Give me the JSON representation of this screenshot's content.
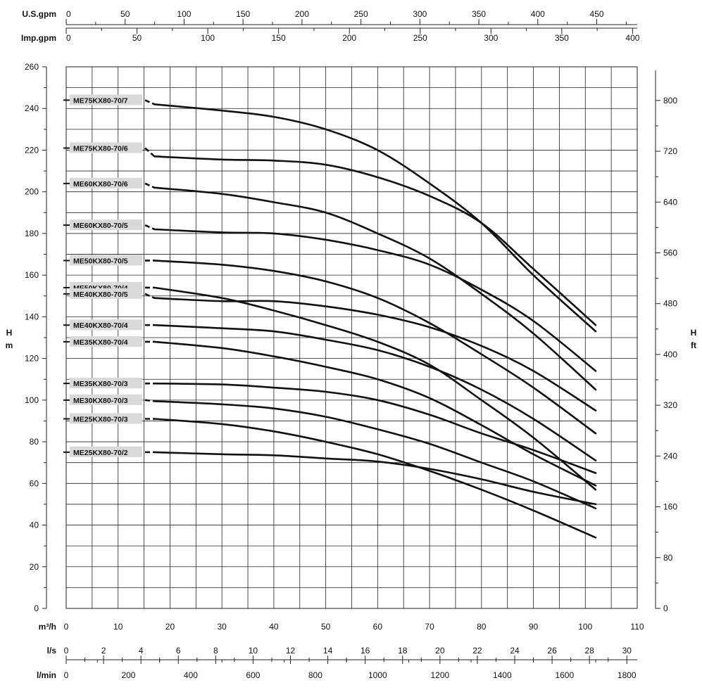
{
  "chart_data": {
    "type": "line",
    "xlabel": "m³/h",
    "ylabel_left": "H m",
    "ylabel_right": "H ft",
    "xlim": [
      0,
      110
    ],
    "ylim": [
      0,
      260
    ],
    "grid": true,
    "axes": {
      "top1": {
        "label": "U.S.gpm",
        "ticks": [
          "0",
          "50",
          "100",
          "150",
          "200",
          "250",
          "300",
          "350",
          "400",
          "450"
        ],
        "values": [
          0,
          50,
          100,
          150,
          200,
          250,
          300,
          350,
          400,
          450
        ]
      },
      "top2": {
        "label": "Imp.gpm",
        "ticks": [
          "0",
          "50",
          "100",
          "150",
          "200",
          "250",
          "300",
          "350",
          "400"
        ],
        "values": [
          0,
          50,
          100,
          150,
          200,
          250,
          300,
          350,
          400
        ]
      },
      "left": {
        "label_top": "H",
        "label_bottom": "m",
        "ticks": [
          "0",
          "20",
          "40",
          "60",
          "80",
          "100",
          "120",
          "140",
          "160",
          "180",
          "200",
          "220",
          "240",
          "260"
        ],
        "values": [
          0,
          20,
          40,
          60,
          80,
          100,
          120,
          140,
          160,
          180,
          200,
          220,
          240,
          260
        ]
      },
      "right": {
        "label_top": "H",
        "label_bottom": "ft",
        "ticks": [
          "0",
          "80",
          "160",
          "240",
          "320",
          "400",
          "480",
          "560",
          "640",
          "720",
          "800"
        ],
        "values": [
          0,
          80,
          160,
          240,
          320,
          400,
          480,
          560,
          640,
          720,
          800
        ]
      },
      "bottom1": {
        "label": "m³/h",
        "ticks": [
          "0",
          "10",
          "20",
          "30",
          "40",
          "50",
          "60",
          "70",
          "80",
          "90",
          "100",
          "110"
        ],
        "values": [
          0,
          10,
          20,
          30,
          40,
          50,
          60,
          70,
          80,
          90,
          100,
          110
        ]
      },
      "bottom2": {
        "label": "l/s",
        "ticks": [
          "0",
          "2",
          "4",
          "6",
          "8",
          "10",
          "12",
          "14",
          "16",
          "18",
          "20",
          "22",
          "24",
          "26",
          "28",
          "30"
        ],
        "values": [
          0,
          2,
          4,
          6,
          8,
          10,
          12,
          14,
          16,
          18,
          20,
          22,
          24,
          26,
          28,
          30
        ]
      },
      "bottom3": {
        "label": "l/min",
        "ticks": [
          "0",
          "200",
          "400",
          "600",
          "800",
          "1000",
          "1200",
          "1400",
          "1600",
          "1800"
        ],
        "values": [
          0,
          200,
          400,
          600,
          800,
          1000,
          1200,
          1400,
          1600,
          1800
        ]
      }
    },
    "series": [
      {
        "name": "ME75KX80-70/7",
        "label_y": 244,
        "x": [
          17,
          30,
          40,
          50,
          60,
          70,
          80,
          90,
          102
        ],
        "y": [
          242,
          239,
          236,
          230,
          220,
          204,
          185,
          160,
          133
        ]
      },
      {
        "name": "ME75KX80-70/6",
        "label_y": 221,
        "x": [
          17,
          30,
          40,
          50,
          60,
          70,
          80,
          90,
          102
        ],
        "y": [
          217,
          215.5,
          215,
          213,
          207,
          198,
          185,
          163,
          136
        ]
      },
      {
        "name": "ME60KX80-70/6",
        "label_y": 204,
        "x": [
          17,
          30,
          40,
          50,
          60,
          70,
          80,
          90,
          102
        ],
        "y": [
          202,
          199,
          195,
          190,
          180,
          168,
          151,
          132,
          105
        ]
      },
      {
        "name": "ME60KX80-70/5",
        "label_y": 184,
        "x": [
          17,
          30,
          40,
          50,
          60,
          70,
          80,
          90,
          102
        ],
        "y": [
          182,
          180.5,
          180,
          177,
          172,
          165,
          153,
          138,
          114
        ]
      },
      {
        "name": "ME50KX80-70/5",
        "label_y": 167,
        "x": [
          17,
          30,
          40,
          50,
          60,
          70,
          80,
          90,
          102
        ],
        "y": [
          167,
          165,
          162,
          157,
          149,
          137,
          122,
          106,
          84
        ]
      },
      {
        "name": "ME50KX80-70/4",
        "label_y": 154,
        "x": [
          17,
          30,
          40,
          50,
          60,
          70,
          80,
          90,
          102
        ],
        "y": [
          154,
          149,
          143,
          136,
          128,
          117,
          100,
          82,
          57
        ]
      },
      {
        "name": "ME40KX80-70/5",
        "label_y": 151,
        "x": [
          17,
          30,
          40,
          50,
          60,
          70,
          80,
          90,
          102
        ],
        "y": [
          149,
          147.5,
          147.5,
          145,
          141,
          135,
          126,
          114,
          95
        ]
      },
      {
        "name": "ME40KX80-70/4",
        "label_y": 136,
        "x": [
          17,
          30,
          40,
          50,
          60,
          70,
          80,
          90,
          102
        ],
        "y": [
          136,
          134.5,
          133,
          129,
          124,
          116,
          105,
          91,
          71
        ]
      },
      {
        "name": "ME35KX80-70/4",
        "label_y": 128,
        "x": [
          17,
          30,
          40,
          50,
          60,
          70,
          80,
          90,
          102
        ],
        "y": [
          128,
          125,
          121,
          116,
          110,
          101,
          88,
          74,
          59
        ]
      },
      {
        "name": "ME35KX80-70/3",
        "label_y": 108,
        "x": [
          17,
          30,
          40,
          50,
          60,
          70,
          80,
          90,
          102
        ],
        "y": [
          108,
          107.5,
          106,
          104,
          100,
          93,
          84,
          76,
          65
        ]
      },
      {
        "name": "ME30KX80-70/3",
        "label_y": 100,
        "x": [
          17,
          30,
          40,
          50,
          60,
          70,
          80,
          90,
          102
        ],
        "y": [
          99.5,
          98,
          96,
          92,
          86,
          79,
          70,
          61,
          48
        ]
      },
      {
        "name": "ME25KX80-70/3",
        "label_y": 91,
        "x": [
          17,
          30,
          40,
          50,
          60,
          70,
          80,
          90,
          102
        ],
        "y": [
          91,
          88.5,
          85,
          80,
          74,
          66,
          57,
          47,
          34
        ]
      },
      {
        "name": "ME25KX80-70/2",
        "label_y": 75,
        "x": [
          17,
          30,
          40,
          50,
          60,
          70,
          80,
          90,
          102
        ],
        "y": [
          75,
          74,
          73.5,
          72,
          70.5,
          67,
          62,
          56,
          50
        ]
      }
    ]
  }
}
